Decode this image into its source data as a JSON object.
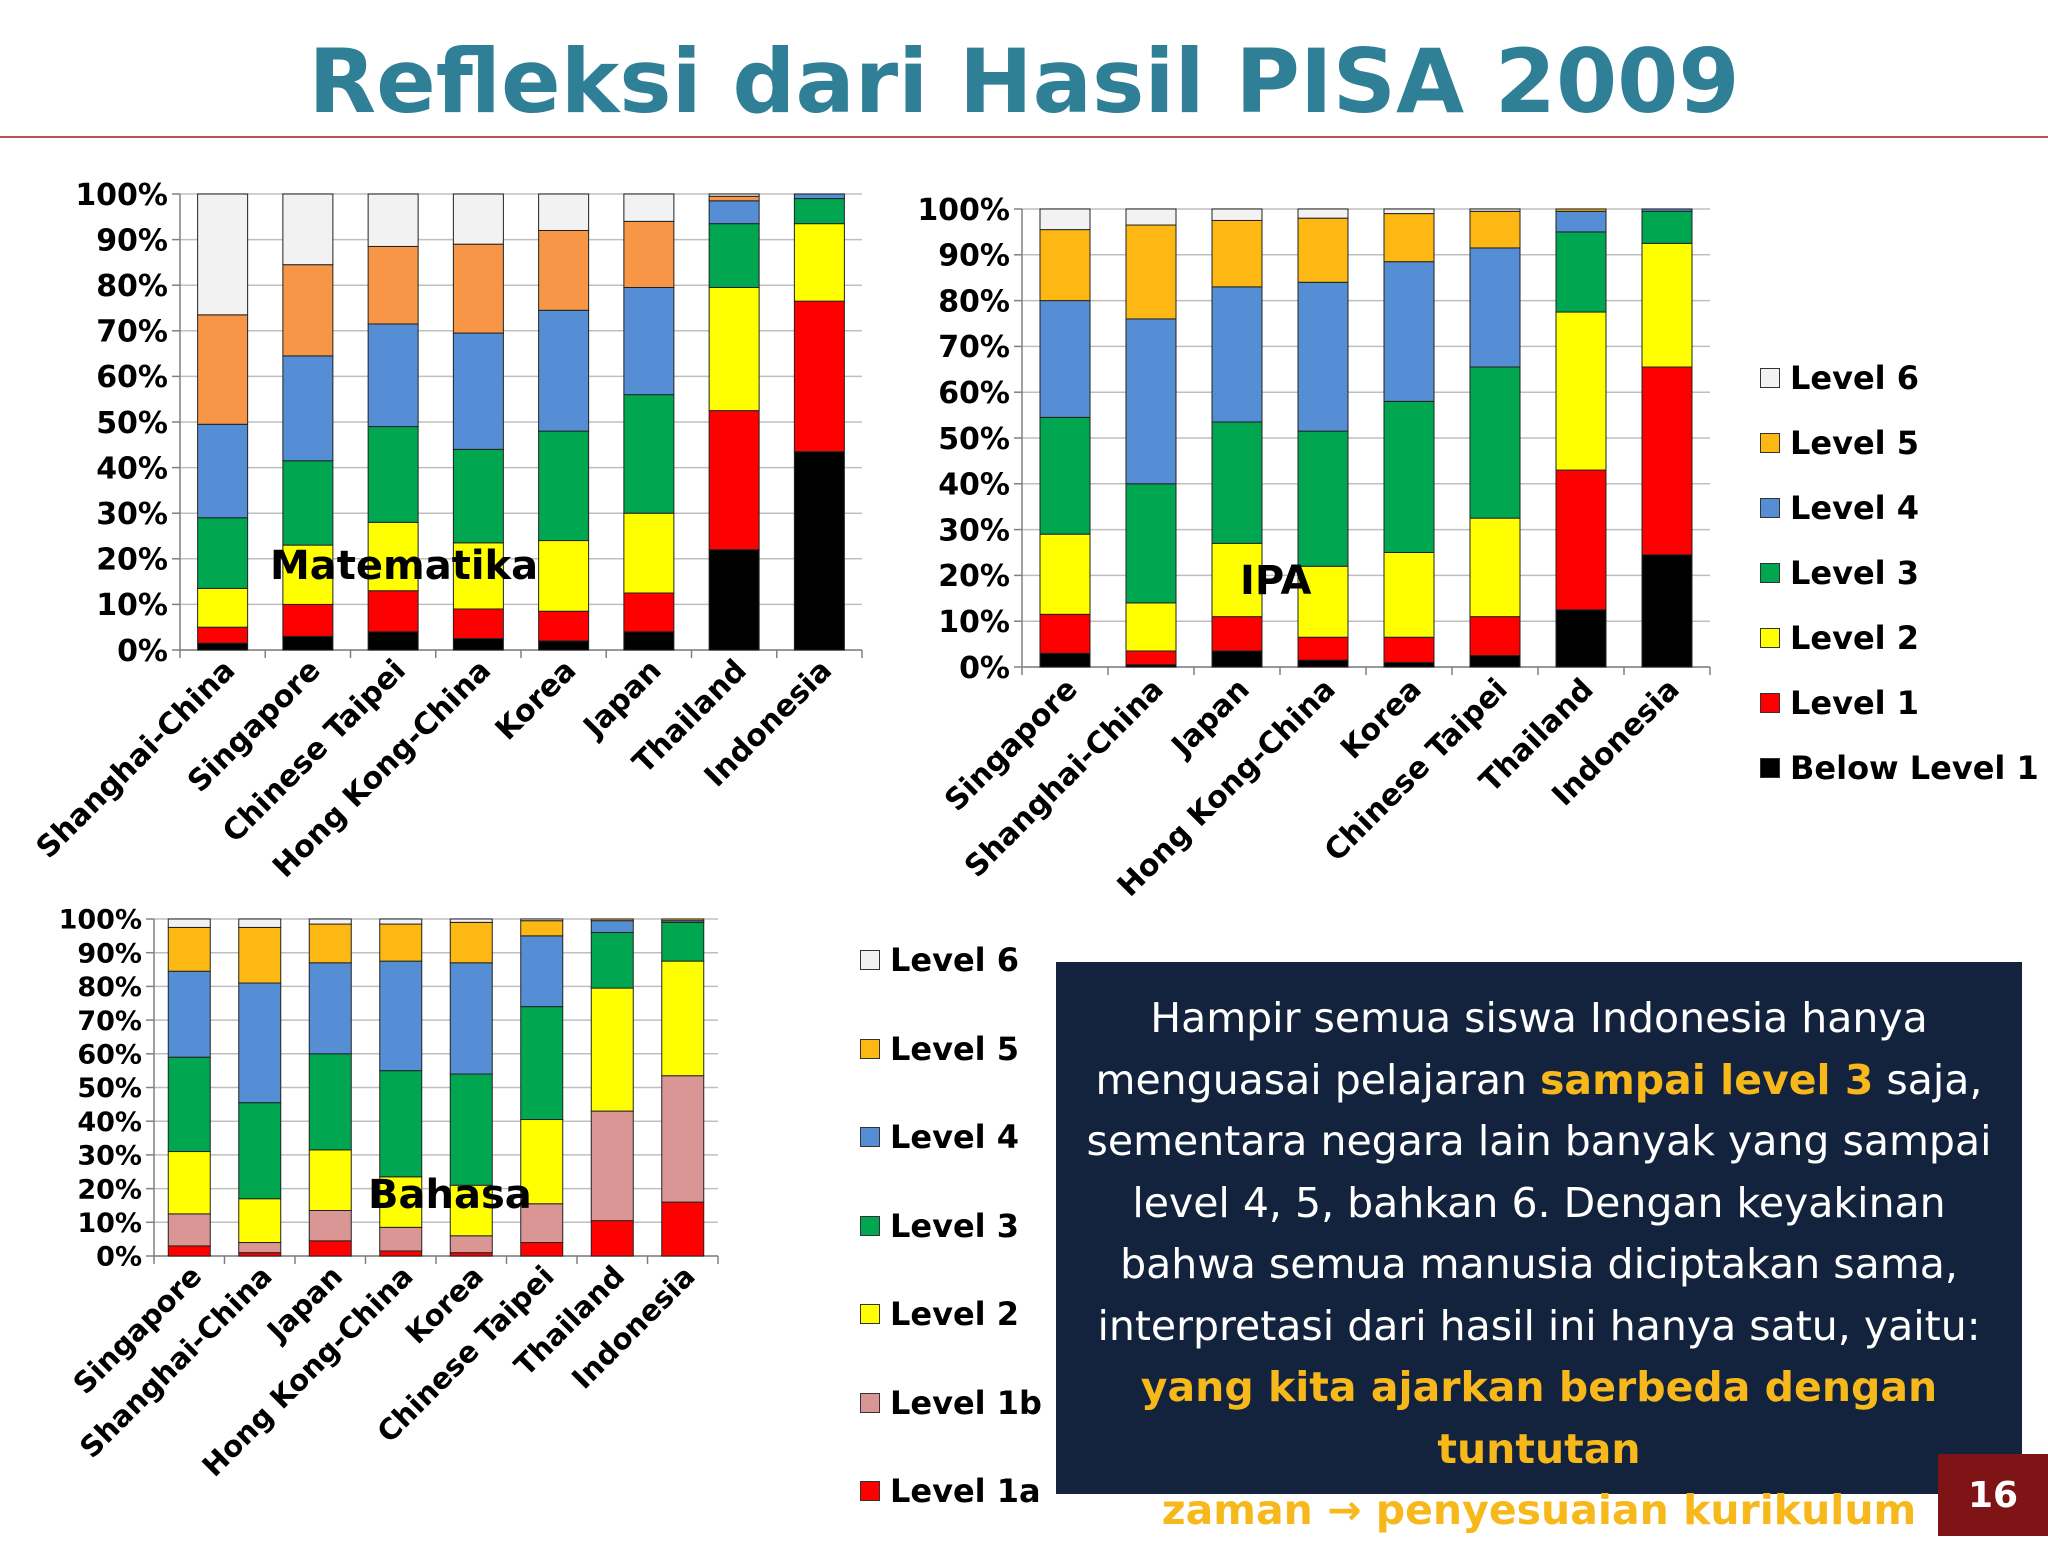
{
  "title": "Refleksi dari Hasil PISA 2009",
  "page_number": "16",
  "colors": {
    "title": "#2f7f97",
    "rule": "#c0504d",
    "box_bg": "#14233d",
    "highlight": "#f7b81c",
    "page_badge": "#7f1416",
    "below_level_1": "#000000",
    "level_1": "#ff0000",
    "level_1a": "#ff0000",
    "level_1b": "#d99694",
    "level_2": "#ffff00",
    "level_3": "#00a650",
    "level_4": "#558ed5",
    "level_5": "#fdb813",
    "level_6": "#f2f2f2",
    "level_5_math": "#f79646"
  },
  "legend_right": {
    "items": [
      {
        "label": "Level 6",
        "color": "#f2f2f2"
      },
      {
        "label": "Level 5",
        "color": "#fdb813"
      },
      {
        "label": "Level 4",
        "color": "#558ed5"
      },
      {
        "label": "Level 3",
        "color": "#00a650"
      },
      {
        "label": "Level 2",
        "color": "#ffff00"
      },
      {
        "label": "Level 1",
        "color": "#ff0000"
      },
      {
        "label": "Below Level 1",
        "color": "#000000"
      }
    ]
  },
  "legend_bottom": {
    "items": [
      {
        "label": "Level 6",
        "color": "#f2f2f2"
      },
      {
        "label": "Level 5",
        "color": "#fdb813"
      },
      {
        "label": "Level 4",
        "color": "#558ed5"
      },
      {
        "label": "Level 3",
        "color": "#00a650"
      },
      {
        "label": "Level 2",
        "color": "#ffff00"
      },
      {
        "label": "Level 1b",
        "color": "#d99694"
      },
      {
        "label": "Level 1a",
        "color": "#ff0000"
      }
    ]
  },
  "note": {
    "line1": "Hampir semua siswa Indonesia hanya",
    "line2_a": "menguasai pelajaran ",
    "line2_b": "sampai level 3",
    "line2_c": " saja,",
    "line3": "sementara negara lain banyak yang sampai",
    "line4": "level 4, 5, bahkan 6. Dengan keyakinan",
    "line5": "bahwa semua manusia diciptakan sama,",
    "line6": "interpretasi dari hasil ini hanya satu, yaitu:",
    "line7": "yang kita ajarkan berbeda dengan tuntutan",
    "line8": "zaman → penyesuaian kurikulum"
  },
  "chart_data": [
    {
      "type": "bar",
      "stacked": true,
      "overlay_label": "Matematika",
      "categories": [
        "Shanghai-China",
        "Singapore",
        "Chinese Taipei",
        "Hong Kong-China",
        "Korea",
        "Japan",
        "Thailand",
        "Indonesia"
      ],
      "ylim": [
        0,
        100
      ],
      "yticks": [
        "0%",
        "10%",
        "20%",
        "30%",
        "40%",
        "50%",
        "60%",
        "70%",
        "80%",
        "90%",
        "100%"
      ],
      "grid": true,
      "series": [
        {
          "name": "Below Level 1",
          "color": "#000000",
          "values": [
            1.5,
            3,
            4,
            2.5,
            2,
            4,
            22,
            43.5
          ]
        },
        {
          "name": "Level 1",
          "color": "#ff0000",
          "values": [
            3.5,
            7,
            9,
            6.5,
            6.5,
            8.5,
            30.5,
            33
          ]
        },
        {
          "name": "Level 2",
          "color": "#ffff00",
          "values": [
            8.5,
            13,
            15,
            14.5,
            15.5,
            17.5,
            27,
            17
          ]
        },
        {
          "name": "Level 3",
          "color": "#00a650",
          "values": [
            15.5,
            18.5,
            21,
            20.5,
            24,
            26,
            14,
            5.5
          ]
        },
        {
          "name": "Level 4",
          "color": "#558ed5",
          "values": [
            20.5,
            23,
            22.5,
            25.5,
            26.5,
            23.5,
            5,
            1
          ]
        },
        {
          "name": "Level 5",
          "color": "#f79646",
          "values": [
            24,
            20,
            17,
            19.5,
            17.5,
            14.5,
            1,
            0
          ]
        },
        {
          "name": "Level 6",
          "color": "#f2f2f2",
          "values": [
            26.5,
            15.5,
            11.5,
            11,
            8,
            6,
            0.5,
            0
          ]
        }
      ]
    },
    {
      "type": "bar",
      "stacked": true,
      "overlay_label": "IPA",
      "categories": [
        "Singapore",
        "Shanghai-China",
        "Japan",
        "Hong Kong-China",
        "Korea",
        "Chinese Taipei",
        "Thailand",
        "Indonesia"
      ],
      "ylim": [
        0,
        100
      ],
      "yticks": [
        "0%",
        "10%",
        "20%",
        "30%",
        "40%",
        "50%",
        "60%",
        "70%",
        "80%",
        "90%",
        "100%"
      ],
      "grid": true,
      "series": [
        {
          "name": "Below Level 1",
          "color": "#000000",
          "values": [
            3,
            0.5,
            3.5,
            1.5,
            1,
            2.5,
            12.5,
            24.5
          ]
        },
        {
          "name": "Level 1",
          "color": "#ff0000",
          "values": [
            8.5,
            3,
            7.5,
            5,
            5.5,
            8.5,
            30.5,
            41
          ]
        },
        {
          "name": "Level 2",
          "color": "#ffff00",
          "values": [
            17.5,
            10.5,
            16,
            15.5,
            18.5,
            21.5,
            34.5,
            27
          ]
        },
        {
          "name": "Level 3",
          "color": "#00a650",
          "values": [
            25.5,
            26,
            26.5,
            29.5,
            33,
            33,
            17.5,
            7
          ]
        },
        {
          "name": "Level 4",
          "color": "#558ed5",
          "values": [
            25.5,
            36,
            29.5,
            32.5,
            30.5,
            26,
            4.5,
            0.5
          ]
        },
        {
          "name": "Level 5",
          "color": "#fdb813",
          "values": [
            15.5,
            20.5,
            14.5,
            14,
            10.5,
            8,
            0.5,
            0
          ]
        },
        {
          "name": "Level 6",
          "color": "#f2f2f2",
          "values": [
            4.5,
            3.5,
            2.5,
            2,
            1,
            0.5,
            0,
            0
          ]
        }
      ]
    },
    {
      "type": "bar",
      "stacked": true,
      "overlay_label": "Bahasa",
      "categories": [
        "Singapore",
        "Shanghai-China",
        "Japan",
        "Hong Kong-China",
        "Korea",
        "Chinese Taipei",
        "Thailand",
        "Indonesia"
      ],
      "ylim": [
        0,
        100
      ],
      "yticks": [
        "0%",
        "10%",
        "20%",
        "30%",
        "40%",
        "50%",
        "60%",
        "70%",
        "80%",
        "90%",
        "100%"
      ],
      "grid": true,
      "series": [
        {
          "name": "Level 1a",
          "color": "#ff0000",
          "values": [
            3,
            1,
            4.5,
            1.5,
            1,
            4,
            10.5,
            16
          ]
        },
        {
          "name": "Level 1b",
          "color": "#d99694",
          "values": [
            9.5,
            3,
            9,
            7,
            5,
            11.5,
            32.5,
            37.5
          ]
        },
        {
          "name": "Level 2",
          "color": "#ffff00",
          "values": [
            18.5,
            13,
            18,
            15,
            15,
            25,
            36.5,
            34
          ]
        },
        {
          "name": "Level 3",
          "color": "#00a650",
          "values": [
            28,
            28.5,
            28.5,
            31.5,
            33,
            33.5,
            16.5,
            11.5
          ]
        },
        {
          "name": "Level 4",
          "color": "#558ed5",
          "values": [
            25.5,
            35.5,
            27,
            32.5,
            33,
            21,
            3.5,
            0.5
          ]
        },
        {
          "name": "Level 5",
          "color": "#fdb813",
          "values": [
            13,
            16.5,
            11.5,
            11,
            12,
            4.5,
            0.5,
            0.5
          ]
        },
        {
          "name": "Level 6",
          "color": "#f2f2f2",
          "values": [
            2.5,
            2.5,
            1.5,
            1.5,
            1,
            0.5,
            0,
            0
          ]
        }
      ]
    }
  ]
}
